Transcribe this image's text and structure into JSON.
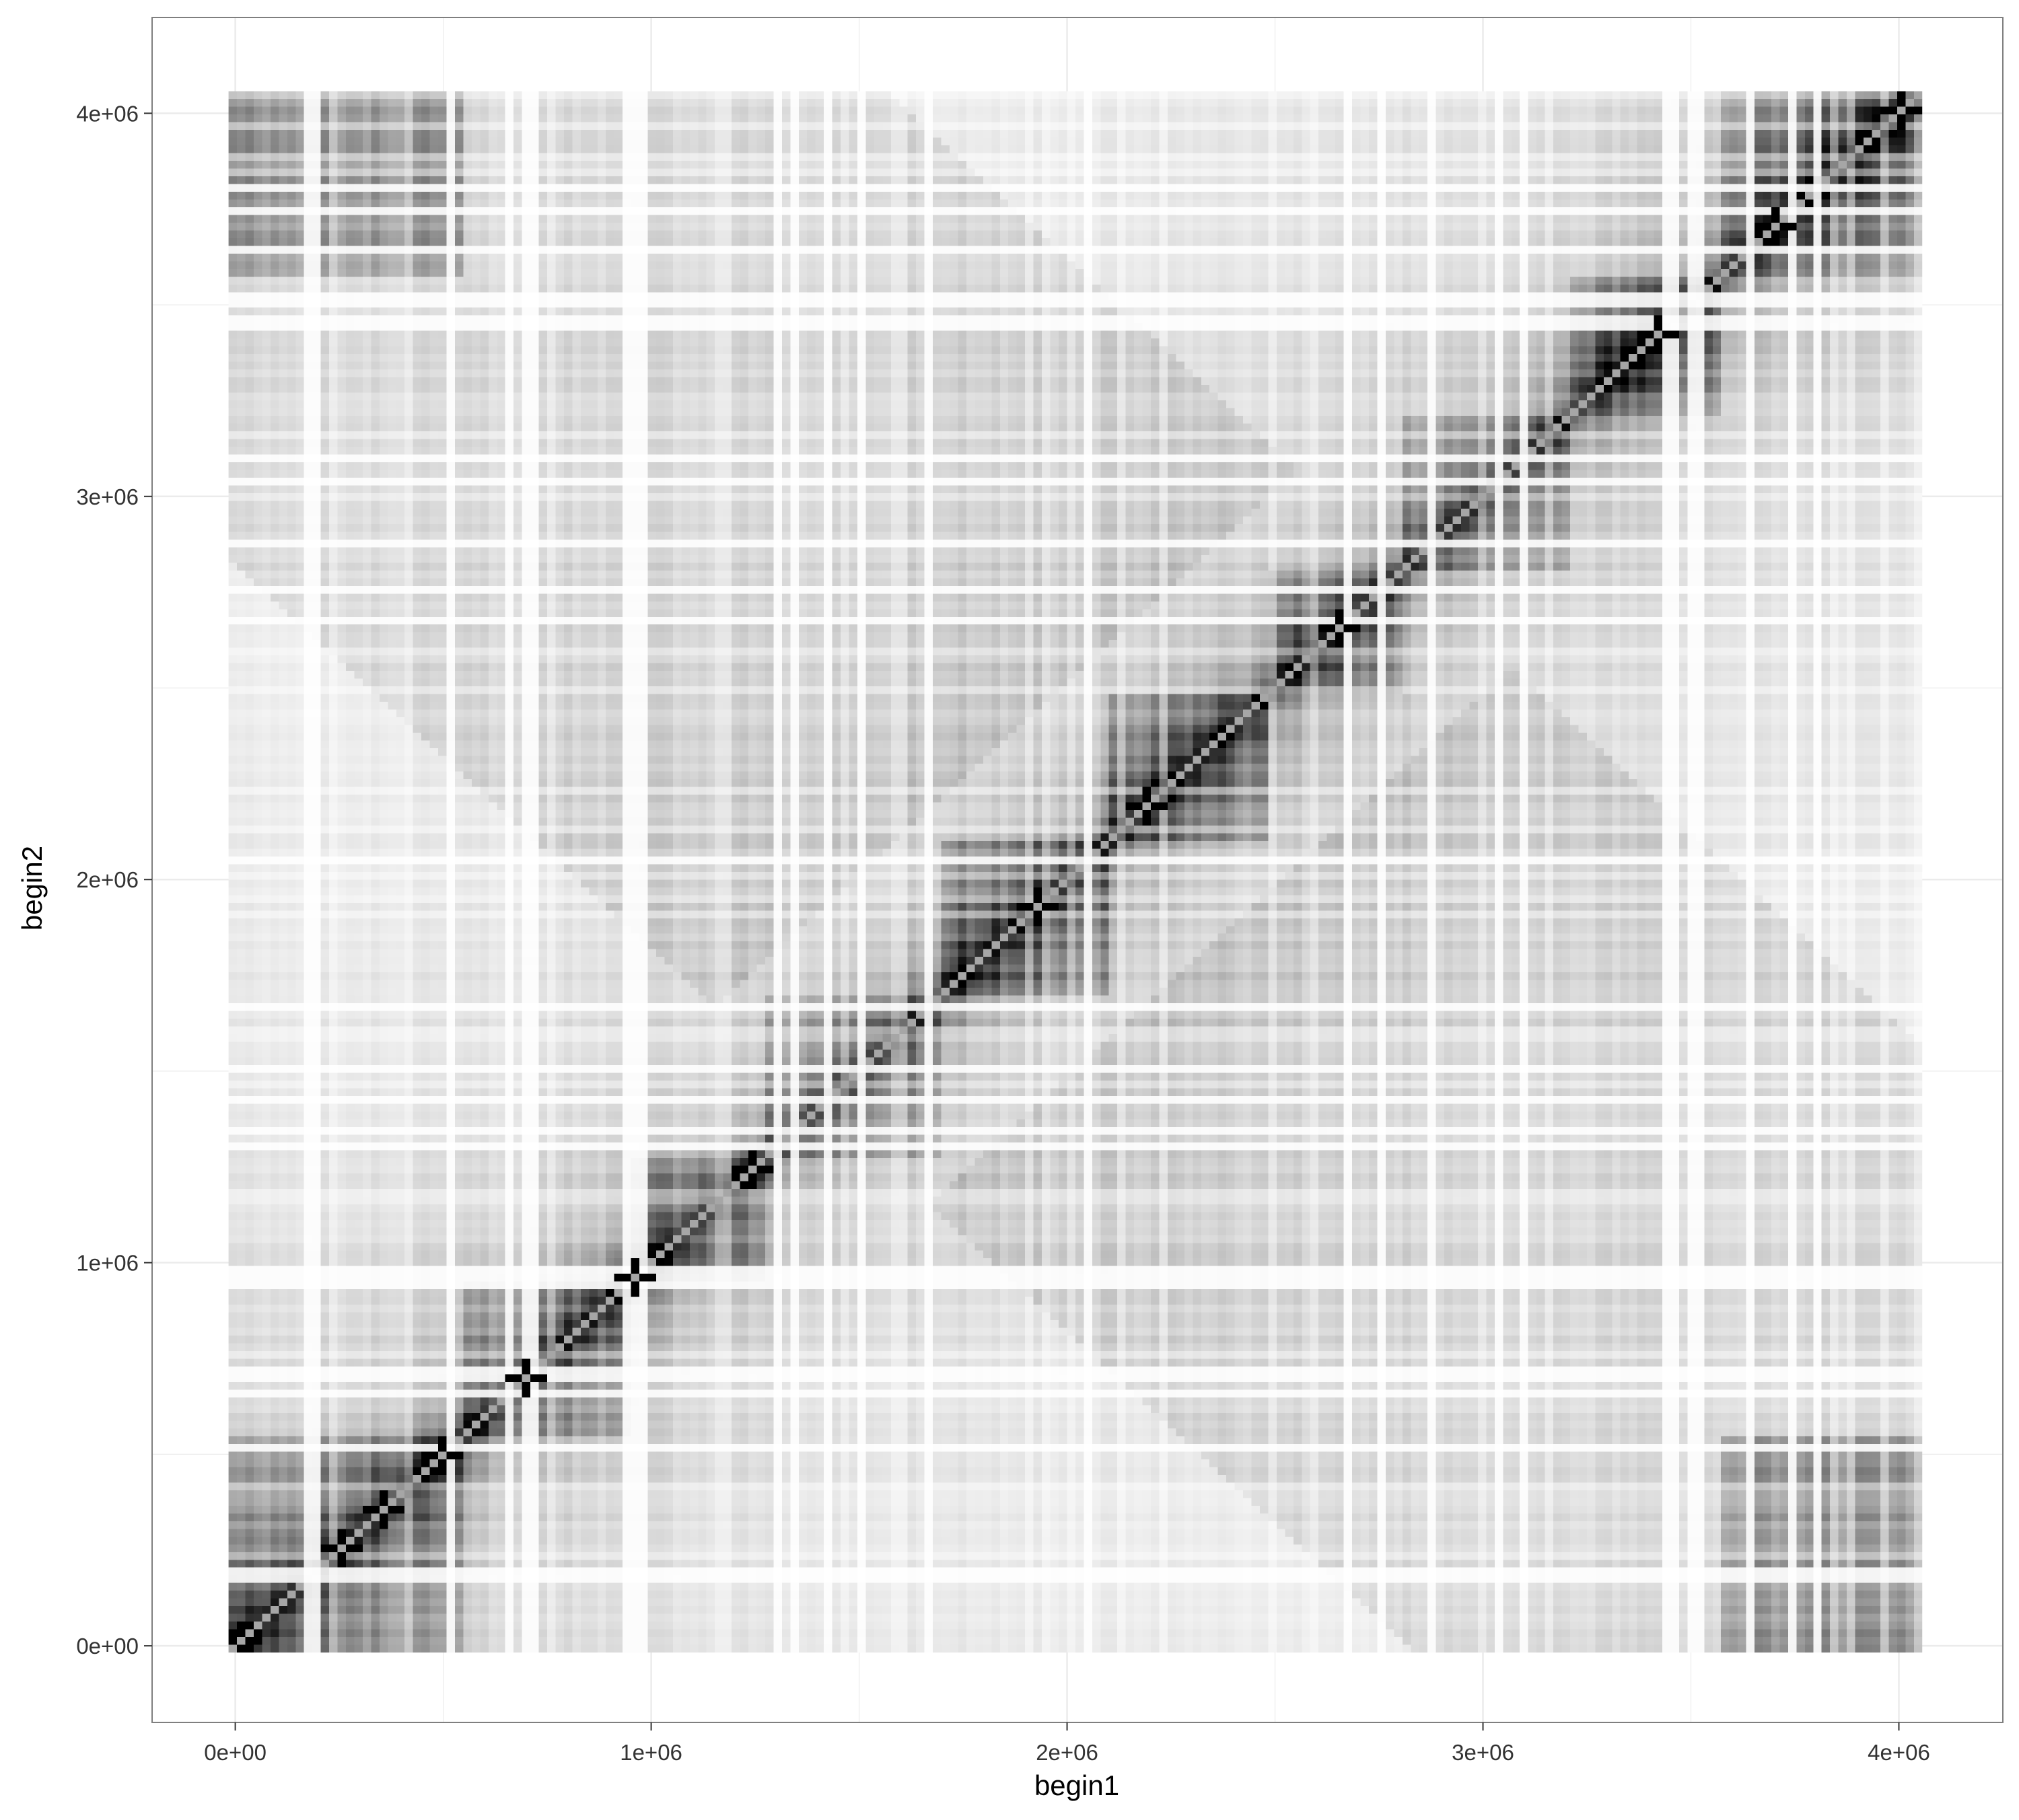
{
  "chart_data": {
    "type": "heatmap",
    "title": "",
    "xlabel": "begin1",
    "ylabel": "begin2",
    "xlim": [
      -200000,
      4250000
    ],
    "ylim": [
      -200000,
      4250000
    ],
    "x_ticks": [
      0,
      1000000,
      2000000,
      3000000,
      4000000
    ],
    "y_ticks": [
      0,
      1000000,
      2000000,
      3000000,
      4000000
    ],
    "x_tick_labels": [
      "0e+00",
      "1e+06",
      "2e+06",
      "3e+06",
      "4e+06"
    ],
    "y_tick_labels": [
      "0e+00",
      "1e+06",
      "2e+06",
      "3e+06",
      "4e+06"
    ],
    "grid": true,
    "legend": "none",
    "fill_scale": {
      "low": "#ffffff",
      "high": "#000000"
    },
    "bin_size": 20000,
    "extent": [
      0,
      4040000
    ],
    "symmetric": true,
    "description_of_data": "contact-frequency matrix; intensity highest along diagonal",
    "domains": [
      {
        "start": 0,
        "end": 560000,
        "intensity": 0.85
      },
      {
        "start": 560000,
        "end": 960000,
        "intensity": 0.6
      },
      {
        "start": 960000,
        "end": 1280000,
        "intensity": 0.7
      },
      {
        "start": 1280000,
        "end": 1700000,
        "intensity": 0.65
      },
      {
        "start": 1700000,
        "end": 2100000,
        "intensity": 0.9
      },
      {
        "start": 2100000,
        "end": 2480000,
        "intensity": 0.75
      },
      {
        "start": 2480000,
        "end": 2800000,
        "intensity": 0.8
      },
      {
        "start": 2800000,
        "end": 3200000,
        "intensity": 0.6
      },
      {
        "start": 3200000,
        "end": 3560000,
        "intensity": 0.85
      },
      {
        "start": 3560000,
        "end": 4040000,
        "intensity": 0.9
      }
    ],
    "hotspots": [
      {
        "x": 20000,
        "y": 20000
      },
      {
        "x": 250000,
        "y": 250000
      },
      {
        "x": 350000,
        "y": 350000
      },
      {
        "x": 500000,
        "y": 500000
      },
      {
        "x": 700000,
        "y": 700000
      },
      {
        "x": 950000,
        "y": 950000
      },
      {
        "x": 1240000,
        "y": 1240000
      },
      {
        "x": 1920000,
        "y": 1920000
      },
      {
        "x": 2180000,
        "y": 2180000
      },
      {
        "x": 2630000,
        "y": 2630000
      },
      {
        "x": 3400000,
        "y": 3400000
      },
      {
        "x": 3680000,
        "y": 3680000
      },
      {
        "x": 3980000,
        "y": 3980000
      }
    ],
    "corner_contacts": [
      {
        "x_start": 0,
        "x_end": 560000,
        "y_start": 3560000,
        "y_end": 4040000,
        "intensity": 0.55
      },
      {
        "x_start": 3560000,
        "x_end": 4040000,
        "y_start": 0,
        "y_end": 560000,
        "intensity": 0.55
      }
    ]
  }
}
